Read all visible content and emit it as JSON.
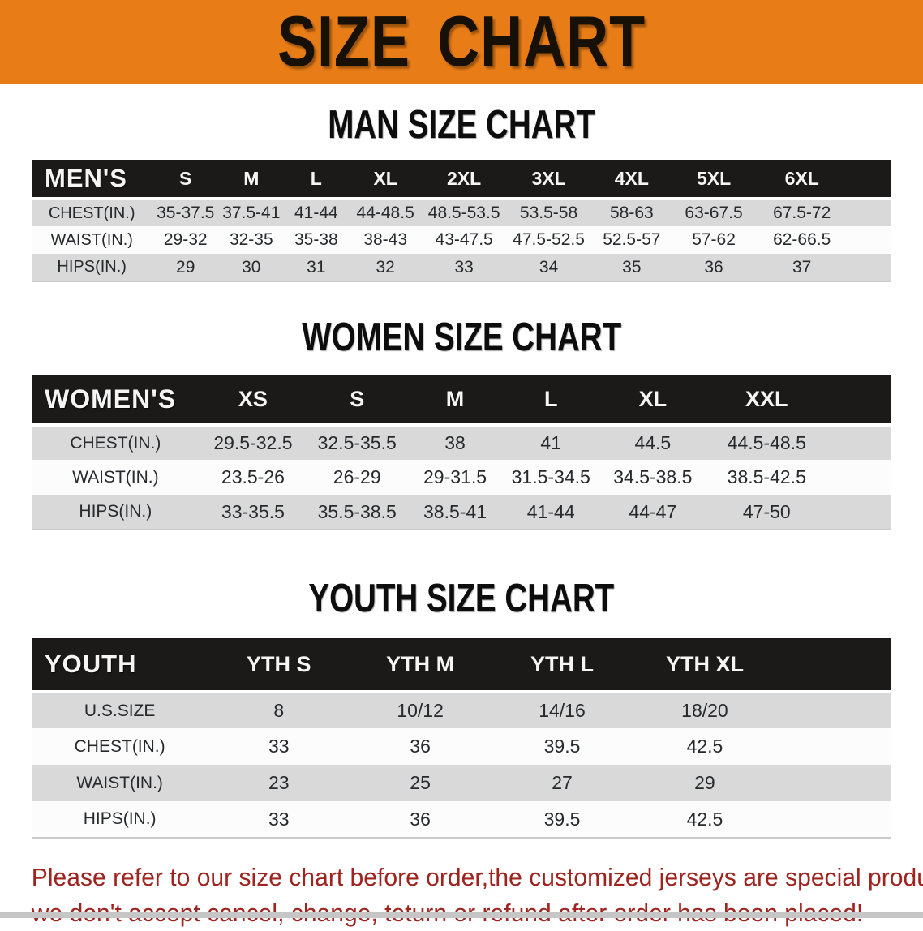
{
  "banner": {
    "title": "SIZE CHART",
    "bg_color": "#e87d18",
    "text_color": "#161006"
  },
  "colors": {
    "table_header_bg": "#1b1a18",
    "row_stripe_gray": "#d9d9d9",
    "row_stripe_white": "#fcfcfc",
    "footer_text": "#9e241f"
  },
  "sections": [
    {
      "id": "men",
      "title": "MAN SIZE CHART",
      "table": {
        "header_label": "MEN'S",
        "columns": [
          "S",
          "M",
          "L",
          "XL",
          "2XL",
          "3XL",
          "4XL",
          "5XL",
          "6XL"
        ],
        "rows": [
          {
            "label": "CHEST(IN.)",
            "values": [
              "35-37.5",
              "37.5-41",
              "41-44",
              "44-48.5",
              "48.5-53.5",
              "53.5-58",
              "58-63",
              "63-67.5",
              "67.5-72"
            ]
          },
          {
            "label": "WAIST(IN.)",
            "values": [
              "29-32",
              "32-35",
              "35-38",
              "38-43",
              "43-47.5",
              "47.5-52.5",
              "52.5-57",
              "57-62",
              "62-66.5"
            ]
          },
          {
            "label": "HIPS(IN.)",
            "values": [
              "29",
              "30",
              "31",
              "32",
              "33",
              "34",
              "35",
              "36",
              "37"
            ]
          }
        ]
      }
    },
    {
      "id": "women",
      "title": "WOMEN SIZE CHART",
      "table": {
        "header_label": "WOMEN'S",
        "columns": [
          "XS",
          "S",
          "M",
          "L",
          "XL",
          "XXL"
        ],
        "rows": [
          {
            "label": "CHEST(IN.)",
            "values": [
              "29.5-32.5",
              "32.5-35.5",
              "38",
              "41",
              "44.5",
              "44.5-48.5"
            ]
          },
          {
            "label": "WAIST(IN.)",
            "values": [
              "23.5-26",
              "26-29",
              "29-31.5",
              "31.5-34.5",
              "34.5-38.5",
              "38.5-42.5"
            ]
          },
          {
            "label": "HIPS(IN.)",
            "values": [
              "33-35.5",
              "35.5-38.5",
              "38.5-41",
              "41-44",
              "44-47",
              "47-50"
            ]
          }
        ]
      }
    },
    {
      "id": "youth",
      "title": "YOUTH SIZE CHART",
      "table": {
        "header_label": "YOUTH",
        "columns": [
          "YTH S",
          "YTH M",
          "YTH L",
          "YTH XL"
        ],
        "rows": [
          {
            "label": "U.S.SIZE",
            "values": [
              "8",
              "10/12",
              "14/16",
              "18/20"
            ]
          },
          {
            "label": "CHEST(IN.)",
            "values": [
              "33",
              "36",
              "39.5",
              "42.5"
            ]
          },
          {
            "label": "WAIST(IN.)",
            "values": [
              "23",
              "25",
              "27",
              "29"
            ]
          },
          {
            "label": "HIPS(IN.)",
            "values": [
              "33",
              "36",
              "39.5",
              "42.5"
            ]
          }
        ]
      }
    }
  ],
  "footer": {
    "line1": "Please refer to our size chart before order,the customized jerseys are special products,",
    "line2": "we don't accept cancel, change, teturn or refund after order has been placed!"
  }
}
